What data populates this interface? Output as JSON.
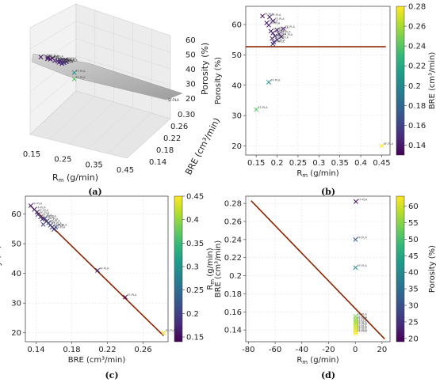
{
  "captions": [
    "(a)",
    "(b)",
    "(c)",
    "(d)"
  ],
  "colors": {
    "fit_line": "#8B2500",
    "plane": "#a9a9a9",
    "viridis": [
      "#440154",
      "#482878",
      "#3e4a89",
      "#31688e",
      "#26828e",
      "#1f9e89",
      "#35b779",
      "#6ece58",
      "#b5de2b",
      "#fde725"
    ]
  },
  "point_label": "FF-PLA",
  "chart_data": [
    {
      "type": "scatter3d",
      "panel": "a",
      "xlabel": "R",
      "xlabel_sub": "m",
      "xlabel_unit": " (g/min)",
      "ylabel": "BRE (cm³/min)",
      "zlabel": "Porosity (%)",
      "x_ticks": [
        "0.15",
        "0.25",
        "0.35",
        "0.45"
      ],
      "y_ticks": [
        "0.14",
        "0.18",
        "0.22",
        "0.26",
        "0.30"
      ],
      "z_ticks": [
        "20",
        "30",
        "40",
        "50",
        "60"
      ],
      "corner_label": "SF-PLA",
      "has_fit_plane": true
    },
    {
      "type": "scatter",
      "panel": "b",
      "xlabel": "R",
      "xlabel_sub": "m",
      "xlabel_unit": " (g/min)",
      "ylabel": "Porosity (%)",
      "colorbar_label": "BRE (cm³/min)",
      "xlim": [
        0.125,
        0.47
      ],
      "ylim": [
        17,
        66
      ],
      "x_ticks": [
        0.15,
        0.2,
        0.25,
        0.3,
        0.35,
        0.4,
        0.45
      ],
      "y_ticks": [
        20,
        30,
        40,
        50,
        60
      ],
      "colorbar_range": [
        0.13,
        0.28
      ],
      "colorbar_ticks": [
        0.14,
        0.16,
        0.18,
        0.2,
        0.22,
        0.24,
        0.26,
        0.28
      ],
      "fit_line": {
        "x": [
          0.125,
          0.46
        ],
        "y": [
          52.7,
          52.7
        ]
      },
      "points": [
        {
          "x": 0.165,
          "y": 62.8,
          "c": 0.135,
          "label": "FF-PLA"
        },
        {
          "x": 0.182,
          "y": 62.5,
          "c": 0.138,
          "label": "FF-PLA"
        },
        {
          "x": 0.19,
          "y": 61.2,
          "c": 0.137,
          "label": "FF-PLA"
        },
        {
          "x": 0.175,
          "y": 60.5,
          "c": 0.139,
          "label": "FF-PLA"
        },
        {
          "x": 0.18,
          "y": 59.8,
          "c": 0.14,
          "label": "FF-PLA"
        },
        {
          "x": 0.185,
          "y": 57.8,
          "c": 0.142,
          "label": "FF-PLA"
        },
        {
          "x": 0.2,
          "y": 58.2,
          "c": 0.143,
          "label": "FF-PLA"
        },
        {
          "x": 0.215,
          "y": 58.6,
          "c": 0.141,
          "label": "FF-PLA"
        },
        {
          "x": 0.19,
          "y": 57.2,
          "c": 0.144,
          "label": "FF-PLA"
        },
        {
          "x": 0.205,
          "y": 56.9,
          "c": 0.145,
          "label": "FF-PLA"
        },
        {
          "x": 0.195,
          "y": 56.2,
          "c": 0.146,
          "label": "FF-PLA"
        },
        {
          "x": 0.21,
          "y": 56.0,
          "c": 0.144,
          "label": "FF-PLA"
        },
        {
          "x": 0.188,
          "y": 55.4,
          "c": 0.147,
          "label": "FF-PLA"
        },
        {
          "x": 0.2,
          "y": 55.0,
          "c": 0.148,
          "label": "FF-PLA"
        },
        {
          "x": 0.192,
          "y": 54.2,
          "c": 0.15,
          "label": "FF-PLA"
        },
        {
          "x": 0.19,
          "y": 53.6,
          "c": 0.152,
          "label": "FF-PLA"
        },
        {
          "x": 0.18,
          "y": 41.0,
          "c": 0.21,
          "label": "FF-PLA"
        },
        {
          "x": 0.15,
          "y": 32.0,
          "c": 0.24,
          "label": "FF-PLA"
        },
        {
          "x": 0.45,
          "y": 20.0,
          "c": 0.28,
          "label": "SF-PLA"
        }
      ]
    },
    {
      "type": "scatter",
      "panel": "c",
      "xlabel": "BRE (cm³/min)",
      "ylabel": "Porosity (%)",
      "colorbar_label": "R",
      "colorbar_label_sub": "m",
      "colorbar_label_unit": " (g/min)",
      "xlim": [
        0.128,
        0.288
      ],
      "ylim": [
        17,
        66
      ],
      "x_ticks": [
        0.14,
        0.18,
        0.22,
        0.26
      ],
      "y_ticks": [
        20,
        30,
        40,
        50,
        60
      ],
      "colorbar_range": [
        0.14,
        0.45
      ],
      "colorbar_ticks": [
        0.15,
        0.2,
        0.25,
        0.3,
        0.35,
        0.4,
        0.45
      ],
      "fit_line": {
        "x": [
          0.133,
          0.283
        ],
        "y": [
          63.0,
          19.0
        ]
      },
      "points": [
        {
          "x": 0.134,
          "y": 62.8,
          "c": 0.165,
          "label": "FF-PLA"
        },
        {
          "x": 0.138,
          "y": 61.5,
          "c": 0.18,
          "label": "FF-PLA"
        },
        {
          "x": 0.141,
          "y": 60.6,
          "c": 0.175,
          "label": "FF-PLA"
        },
        {
          "x": 0.142,
          "y": 59.8,
          "c": 0.19,
          "label": "FF-PLA"
        },
        {
          "x": 0.145,
          "y": 59.0,
          "c": 0.2,
          "label": "FF-PLA"
        },
        {
          "x": 0.147,
          "y": 58.2,
          "c": 0.185,
          "label": "FF-PLA"
        },
        {
          "x": 0.15,
          "y": 58.5,
          "c": 0.215,
          "label": "FF-PLA"
        },
        {
          "x": 0.152,
          "y": 57.6,
          "c": 0.2,
          "label": "FF-PLA"
        },
        {
          "x": 0.154,
          "y": 57.0,
          "c": 0.21,
          "label": "FF-PLA"
        },
        {
          "x": 0.148,
          "y": 56.5,
          "c": 0.195,
          "label": "FF-PLA"
        },
        {
          "x": 0.156,
          "y": 56.2,
          "c": 0.205,
          "label": "FF-PLA"
        },
        {
          "x": 0.158,
          "y": 55.5,
          "c": 0.2,
          "label": "FF-PLA"
        },
        {
          "x": 0.16,
          "y": 54.8,
          "c": 0.19,
          "label": "FF-PLA"
        },
        {
          "x": 0.162,
          "y": 55.6,
          "c": 0.21,
          "label": "FF-PLA"
        },
        {
          "x": 0.209,
          "y": 41.0,
          "c": 0.18,
          "label": "FF-PLA"
        },
        {
          "x": 0.24,
          "y": 32.0,
          "c": 0.15,
          "label": "FF-PLA"
        },
        {
          "x": 0.283,
          "y": 20.0,
          "c": 0.45,
          "label": "SF-PLA"
        }
      ]
    },
    {
      "type": "scatter",
      "panel": "d",
      "xlabel": "R",
      "xlabel_sub": "m",
      "xlabel_unit": " (g/min)",
      "ylabel": "BRE (cm³/min)",
      "colorbar_label": "Porosity (%)",
      "xlim": [
        -82,
        26
      ],
      "ylim": [
        0.127,
        0.288
      ],
      "x_ticks": [
        -80,
        -60,
        -40,
        -20,
        0,
        20
      ],
      "y_ticks": [
        0.14,
        0.16,
        0.18,
        0.2,
        0.22,
        0.24,
        0.26,
        0.28
      ],
      "colorbar_range": [
        19,
        63
      ],
      "colorbar_ticks": [
        20,
        25,
        30,
        35,
        40,
        45,
        50,
        55,
        60
      ],
      "fit_line": {
        "x": [
          -78,
          22
        ],
        "y": [
          0.283,
          0.13
        ]
      },
      "points": [
        {
          "x": 0.45,
          "y": 0.282,
          "c": 20,
          "label": "FF-PLA"
        },
        {
          "x": 0.15,
          "y": 0.24,
          "c": 32,
          "label": "FF-PLA"
        },
        {
          "x": 0.18,
          "y": 0.209,
          "c": 41,
          "label": "FF-PLA"
        },
        {
          "x": 0.19,
          "y": 0.155,
          "c": 54,
          "label": "FF-PLA"
        },
        {
          "x": 0.2,
          "y": 0.152,
          "c": 55,
          "label": "FF-PLA"
        },
        {
          "x": 0.19,
          "y": 0.15,
          "c": 56,
          "label": "FF-PLA"
        },
        {
          "x": 0.2,
          "y": 0.148,
          "c": 57,
          "label": "FF-PLA"
        },
        {
          "x": 0.19,
          "y": 0.146,
          "c": 58,
          "label": "FF-PLA"
        },
        {
          "x": 0.21,
          "y": 0.144,
          "c": 59,
          "label": "FF-PLA"
        },
        {
          "x": 0.18,
          "y": 0.142,
          "c": 60,
          "label": "FF-PLA"
        },
        {
          "x": 0.17,
          "y": 0.14,
          "c": 61,
          "label": "FF-PLA"
        },
        {
          "x": 0.19,
          "y": 0.138,
          "c": 62,
          "label": "FF-PLA"
        },
        {
          "x": 0.165,
          "y": 0.136,
          "c": 63,
          "label": "FF-PLA"
        }
      ]
    }
  ]
}
